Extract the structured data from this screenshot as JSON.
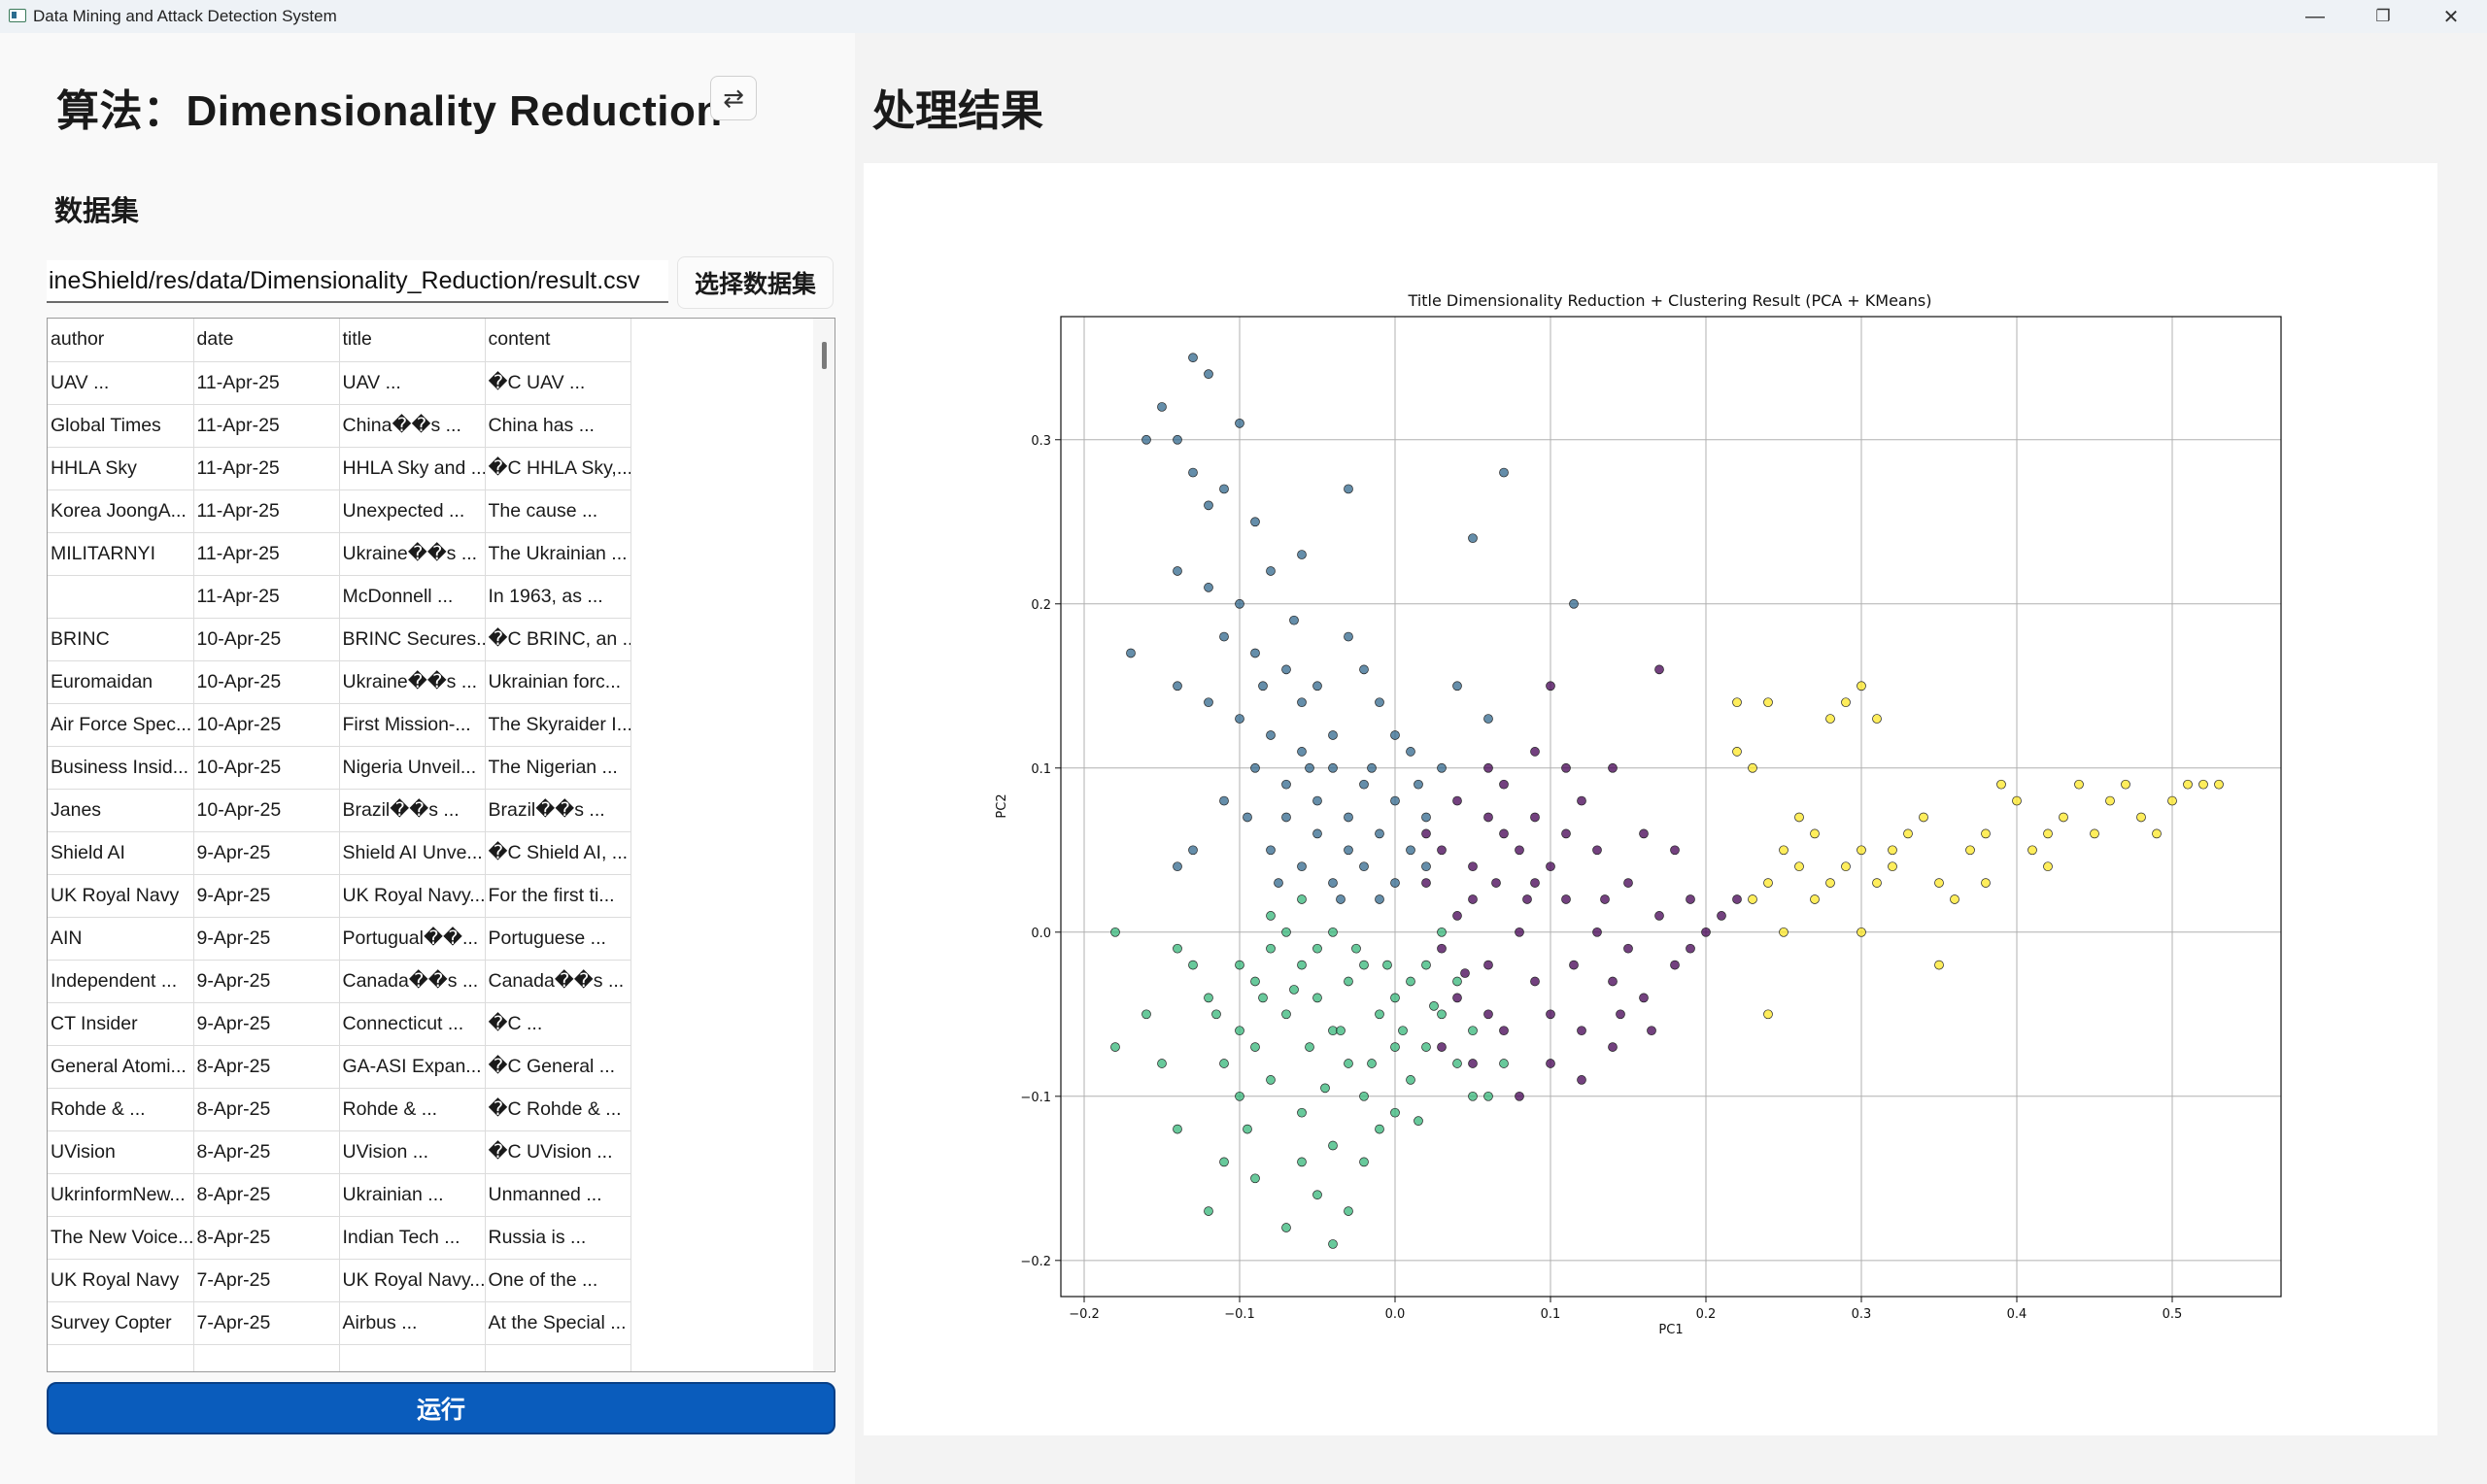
{
  "window": {
    "title": "Data Mining and Attack Detection System",
    "minimize": "—",
    "restore": "❐",
    "close": "✕"
  },
  "left": {
    "algorithm_title": "算法：Dimensionality Reduction",
    "swap_icon": "⇄",
    "dataset_label": "数据集",
    "path_value": "ineShield/res/data/Dimensionality_Reduction/result.csv",
    "select_button": "选择数据集",
    "run_button": "运行",
    "table": {
      "headers": [
        "author",
        "date",
        "title",
        "content"
      ],
      "rows": [
        [
          "UAV ...",
          "11-Apr-25",
          "UAV ...",
          "�C UAV ..."
        ],
        [
          "Global Times",
          "11-Apr-25",
          "China��s ...",
          "China has ..."
        ],
        [
          "HHLA Sky",
          "11-Apr-25",
          "HHLA Sky and ...",
          "�C HHLA Sky,..."
        ],
        [
          "Korea JoongA...",
          "11-Apr-25",
          "Unexpected ...",
          "The cause ..."
        ],
        [
          "MILITARNYI",
          "11-Apr-25",
          "Ukraine��s ...",
          "The Ukrainian ..."
        ],
        [
          "",
          "11-Apr-25",
          "McDonnell ...",
          "In 1963, as ..."
        ],
        [
          "BRINC",
          "10-Apr-25",
          "BRINC Secures...",
          "�C BRINC, an ..."
        ],
        [
          "Euromaidan",
          "10-Apr-25",
          "Ukraine��s ...",
          "Ukrainian forc..."
        ],
        [
          "Air Force Spec...",
          "10-Apr-25",
          "First Mission-...",
          "The Skyraider I..."
        ],
        [
          "Business Insid...",
          "10-Apr-25",
          "Nigeria Unveil...",
          "The Nigerian ..."
        ],
        [
          "Janes",
          "10-Apr-25",
          "Brazil��s ...",
          "Brazil��s ..."
        ],
        [
          "Shield AI",
          "9-Apr-25",
          "Shield AI Unve...",
          "�C Shield AI, ..."
        ],
        [
          "UK Royal Navy",
          "9-Apr-25",
          "UK Royal Navy...",
          "For the first ti..."
        ],
        [
          "AIN",
          "9-Apr-25",
          "Portugual��...",
          "Portuguese ..."
        ],
        [
          "Independent ...",
          "9-Apr-25",
          "Canada��s ...",
          "Canada��s ..."
        ],
        [
          "CT Insider",
          "9-Apr-25",
          "Connecticut ...",
          "�C ..."
        ],
        [
          "General Atomi...",
          "8-Apr-25",
          "GA-ASI Expan...",
          "�C General ..."
        ],
        [
          "Rohde & ...",
          "8-Apr-25",
          "Rohde & ...",
          "�C Rohde & ..."
        ],
        [
          "UVision",
          "8-Apr-25",
          "UVision ...",
          "�C UVision ..."
        ],
        [
          "UkrinformNew...",
          "8-Apr-25",
          "Ukrainian ...",
          "Unmanned ..."
        ],
        [
          "The New Voice...",
          "8-Apr-25",
          "Indian Tech ...",
          "Russia is ..."
        ],
        [
          "UK Royal Navy",
          "7-Apr-25",
          "UK Royal Navy...",
          "One of the ..."
        ],
        [
          "Survey Copter",
          "7-Apr-25",
          "Airbus ...",
          "At the Special ..."
        ],
        [
          "",
          "",
          "",
          ""
        ]
      ]
    }
  },
  "right": {
    "result_title": "处理结果"
  },
  "chart_data": {
    "type": "scatter",
    "title": "Title Dimensionality Reduction + Clustering Result (PCA + KMeans)",
    "xlabel": "PC1",
    "ylabel": "PC2",
    "xlim": [
      -0.215,
      0.57
    ],
    "ylim": [
      -0.222,
      0.375
    ],
    "xticks": [
      -0.2,
      -0.1,
      0.0,
      0.1,
      0.2,
      0.3,
      0.4,
      0.5
    ],
    "xtick_labels": [
      "−0.2",
      "−0.1",
      "0.0",
      "0.1",
      "0.2",
      "0.3",
      "0.4",
      "0.5"
    ],
    "yticks": [
      -0.2,
      -0.1,
      0.0,
      0.1,
      0.2,
      0.3
    ],
    "ytick_labels": [
      "−0.2",
      "−0.1",
      "0.0",
      "0.1",
      "0.2",
      "0.3"
    ],
    "grid": true,
    "colors": [
      "#440154",
      "#31688e",
      "#35b779",
      "#fde725"
    ],
    "series": [
      {
        "cluster": 0,
        "points": [
          [
            0.03,
            0.05
          ],
          [
            0.05,
            0.04
          ],
          [
            0.07,
            0.06
          ],
          [
            0.09,
            0.03
          ],
          [
            0.11,
            0.02
          ],
          [
            0.13,
            0.0
          ],
          [
            0.15,
            -0.01
          ],
          [
            0.17,
            0.01
          ],
          [
            0.19,
            0.02
          ],
          [
            0.21,
            0.01
          ],
          [
            0.08,
            0.0
          ],
          [
            0.06,
            -0.02
          ],
          [
            0.04,
            -0.04
          ],
          [
            0.1,
            -0.05
          ],
          [
            0.12,
            -0.06
          ],
          [
            0.14,
            -0.03
          ],
          [
            0.16,
            -0.04
          ],
          [
            0.18,
            -0.02
          ],
          [
            0.07,
            0.09
          ],
          [
            0.09,
            0.11
          ],
          [
            0.12,
            0.08
          ],
          [
            0.14,
            0.1
          ],
          [
            0.17,
            0.16
          ],
          [
            0.05,
            0.02
          ],
          [
            0.03,
            -0.01
          ],
          [
            0.02,
            0.03
          ],
          [
            0.04,
            0.01
          ],
          [
            0.06,
            0.07
          ],
          [
            0.08,
            0.05
          ],
          [
            0.1,
            0.04
          ],
          [
            0.13,
            0.05
          ],
          [
            0.15,
            0.03
          ],
          [
            0.19,
            -0.01
          ],
          [
            0.2,
            0.0
          ],
          [
            0.22,
            0.02
          ],
          [
            0.11,
            0.06
          ],
          [
            0.09,
            -0.03
          ],
          [
            0.07,
            -0.06
          ],
          [
            0.05,
            -0.08
          ],
          [
            0.08,
            -0.1
          ],
          [
            0.1,
            -0.08
          ],
          [
            0.12,
            -0.09
          ],
          [
            0.06,
            -0.05
          ],
          [
            0.03,
            -0.07
          ],
          [
            0.16,
            0.06
          ],
          [
            0.18,
            0.05
          ],
          [
            0.14,
            -0.07
          ],
          [
            0.09,
            0.07
          ],
          [
            0.11,
            0.1
          ],
          [
            0.1,
            0.15
          ],
          [
            0.02,
            0.06
          ],
          [
            0.04,
            0.08
          ],
          [
            0.06,
            0.1
          ],
          [
            0.085,
            0.02
          ],
          [
            0.115,
            -0.02
          ],
          [
            0.135,
            0.02
          ],
          [
            0.145,
            -0.05
          ],
          [
            0.165,
            -0.06
          ],
          [
            0.065,
            0.03
          ],
          [
            0.045,
            -0.025
          ]
        ]
      },
      {
        "cluster": 1,
        "points": [
          [
            -0.13,
            0.35
          ],
          [
            -0.12,
            0.34
          ],
          [
            -0.15,
            0.32
          ],
          [
            -0.16,
            0.3
          ],
          [
            -0.14,
            0.3
          ],
          [
            -0.1,
            0.31
          ],
          [
            -0.12,
            0.26
          ],
          [
            -0.11,
            0.27
          ],
          [
            -0.09,
            0.25
          ],
          [
            -0.13,
            0.28
          ],
          [
            -0.14,
            0.22
          ],
          [
            -0.12,
            0.21
          ],
          [
            -0.1,
            0.2
          ],
          [
            -0.08,
            0.22
          ],
          [
            -0.06,
            0.23
          ],
          [
            -0.11,
            0.18
          ],
          [
            -0.09,
            0.17
          ],
          [
            -0.07,
            0.16
          ],
          [
            -0.05,
            0.15
          ],
          [
            -0.03,
            0.18
          ],
          [
            -0.02,
            0.16
          ],
          [
            -0.01,
            0.14
          ],
          [
            0.0,
            0.12
          ],
          [
            -0.12,
            0.14
          ],
          [
            -0.1,
            0.13
          ],
          [
            -0.08,
            0.12
          ],
          [
            -0.06,
            0.11
          ],
          [
            -0.04,
            0.1
          ],
          [
            -0.02,
            0.09
          ],
          [
            0.0,
            0.08
          ],
          [
            0.02,
            0.07
          ],
          [
            0.03,
            0.1
          ],
          [
            0.01,
            0.11
          ],
          [
            -0.09,
            0.1
          ],
          [
            -0.07,
            0.09
          ],
          [
            -0.05,
            0.08
          ],
          [
            -0.03,
            0.07
          ],
          [
            -0.01,
            0.06
          ],
          [
            0.01,
            0.05
          ],
          [
            -0.08,
            0.05
          ],
          [
            -0.06,
            0.04
          ],
          [
            -0.04,
            0.03
          ],
          [
            -0.02,
            0.04
          ],
          [
            0.0,
            0.03
          ],
          [
            -0.05,
            0.06
          ],
          [
            -0.07,
            0.07
          ],
          [
            -0.03,
            0.05
          ],
          [
            -0.01,
            0.02
          ],
          [
            0.02,
            0.04
          ],
          [
            -0.17,
            0.17
          ],
          [
            -0.14,
            0.15
          ],
          [
            -0.11,
            0.08
          ],
          [
            -0.13,
            0.05
          ],
          [
            -0.14,
            0.04
          ],
          [
            0.04,
            0.15
          ],
          [
            0.06,
            0.13
          ],
          [
            0.07,
            0.28
          ],
          [
            0.05,
            0.24
          ],
          [
            0.115,
            0.2
          ],
          [
            -0.03,
            0.27
          ],
          [
            -0.04,
            0.12
          ],
          [
            -0.06,
            0.14
          ],
          [
            -0.085,
            0.15
          ],
          [
            -0.065,
            0.19
          ],
          [
            -0.095,
            0.07
          ],
          [
            -0.075,
            0.03
          ],
          [
            -0.035,
            0.02
          ],
          [
            -0.015,
            0.1
          ],
          [
            0.015,
            0.09
          ],
          [
            -0.055,
            0.1
          ]
        ]
      },
      {
        "cluster": 2,
        "points": [
          [
            -0.18,
            0.0
          ],
          [
            -0.18,
            -0.07
          ],
          [
            -0.15,
            -0.08
          ],
          [
            -0.14,
            -0.12
          ],
          [
            -0.11,
            -0.14
          ],
          [
            -0.1,
            -0.06
          ],
          [
            -0.09,
            -0.03
          ],
          [
            -0.08,
            -0.01
          ],
          [
            -0.07,
            0.0
          ],
          [
            -0.06,
            -0.02
          ],
          [
            -0.05,
            -0.04
          ],
          [
            -0.04,
            -0.06
          ],
          [
            -0.03,
            -0.08
          ],
          [
            -0.02,
            -0.1
          ],
          [
            -0.01,
            -0.12
          ],
          [
            0.0,
            -0.11
          ],
          [
            0.01,
            -0.09
          ],
          [
            0.02,
            -0.07
          ],
          [
            0.03,
            -0.05
          ],
          [
            0.04,
            -0.03
          ],
          [
            0.05,
            -0.06
          ],
          [
            0.06,
            -0.1
          ],
          [
            -0.06,
            -0.14
          ],
          [
            -0.05,
            -0.16
          ],
          [
            -0.04,
            -0.19
          ],
          [
            -0.03,
            -0.17
          ],
          [
            -0.07,
            -0.18
          ],
          [
            -0.09,
            -0.15
          ],
          [
            -0.1,
            -0.1
          ],
          [
            -0.11,
            -0.08
          ],
          [
            -0.12,
            -0.04
          ],
          [
            -0.13,
            -0.02
          ],
          [
            -0.08,
            0.01
          ],
          [
            -0.06,
            0.02
          ],
          [
            -0.04,
            0.0
          ],
          [
            -0.02,
            -0.02
          ],
          [
            0.0,
            -0.04
          ],
          [
            0.01,
            -0.03
          ],
          [
            -0.01,
            -0.05
          ],
          [
            -0.03,
            -0.03
          ],
          [
            -0.05,
            -0.01
          ],
          [
            -0.07,
            -0.05
          ],
          [
            -0.09,
            -0.07
          ],
          [
            -0.08,
            -0.09
          ],
          [
            -0.06,
            -0.11
          ],
          [
            -0.04,
            -0.13
          ],
          [
            -0.02,
            -0.14
          ],
          [
            0.0,
            -0.07
          ],
          [
            0.02,
            -0.02
          ],
          [
            0.03,
            0.0
          ],
          [
            0.04,
            -0.08
          ],
          [
            0.05,
            -0.1
          ],
          [
            0.07,
            -0.08
          ],
          [
            -0.1,
            -0.02
          ],
          [
            -0.115,
            -0.05
          ],
          [
            -0.095,
            -0.12
          ],
          [
            -0.055,
            -0.07
          ],
          [
            -0.035,
            -0.06
          ],
          [
            -0.015,
            -0.08
          ],
          [
            0.005,
            -0.06
          ],
          [
            -0.025,
            -0.01
          ],
          [
            -0.045,
            -0.095
          ],
          [
            -0.065,
            -0.035
          ],
          [
            -0.085,
            -0.04
          ],
          [
            0.015,
            -0.115
          ],
          [
            -0.005,
            -0.02
          ],
          [
            0.025,
            -0.045
          ],
          [
            -0.14,
            -0.01
          ],
          [
            -0.16,
            -0.05
          ],
          [
            -0.12,
            -0.17
          ]
        ]
      },
      {
        "cluster": 3,
        "points": [
          [
            0.22,
            0.14
          ],
          [
            0.24,
            0.14
          ],
          [
            0.22,
            0.11
          ],
          [
            0.23,
            0.1
          ],
          [
            0.28,
            0.13
          ],
          [
            0.29,
            0.14
          ],
          [
            0.3,
            0.15
          ],
          [
            0.31,
            0.13
          ],
          [
            0.26,
            0.07
          ],
          [
            0.27,
            0.06
          ],
          [
            0.25,
            0.05
          ],
          [
            0.26,
            0.04
          ],
          [
            0.24,
            0.03
          ],
          [
            0.23,
            0.02
          ],
          [
            0.25,
            0.0
          ],
          [
            0.24,
            -0.05
          ],
          [
            0.28,
            0.03
          ],
          [
            0.29,
            0.04
          ],
          [
            0.3,
            0.05
          ],
          [
            0.31,
            0.03
          ],
          [
            0.32,
            0.05
          ],
          [
            0.33,
            0.06
          ],
          [
            0.34,
            0.07
          ],
          [
            0.35,
            0.03
          ],
          [
            0.35,
            -0.02
          ],
          [
            0.36,
            0.02
          ],
          [
            0.37,
            0.05
          ],
          [
            0.38,
            0.06
          ],
          [
            0.39,
            0.09
          ],
          [
            0.4,
            0.08
          ],
          [
            0.41,
            0.05
          ],
          [
            0.42,
            0.04
          ],
          [
            0.43,
            0.07
          ],
          [
            0.44,
            0.09
          ],
          [
            0.45,
            0.06
          ],
          [
            0.46,
            0.08
          ],
          [
            0.47,
            0.09
          ],
          [
            0.48,
            0.07
          ],
          [
            0.49,
            0.06
          ],
          [
            0.5,
            0.08
          ],
          [
            0.51,
            0.09
          ],
          [
            0.52,
            0.09
          ],
          [
            0.53,
            0.09
          ],
          [
            0.3,
            0.0
          ],
          [
            0.27,
            0.02
          ],
          [
            0.32,
            0.04
          ],
          [
            0.38,
            0.03
          ],
          [
            0.42,
            0.06
          ]
        ]
      }
    ]
  }
}
